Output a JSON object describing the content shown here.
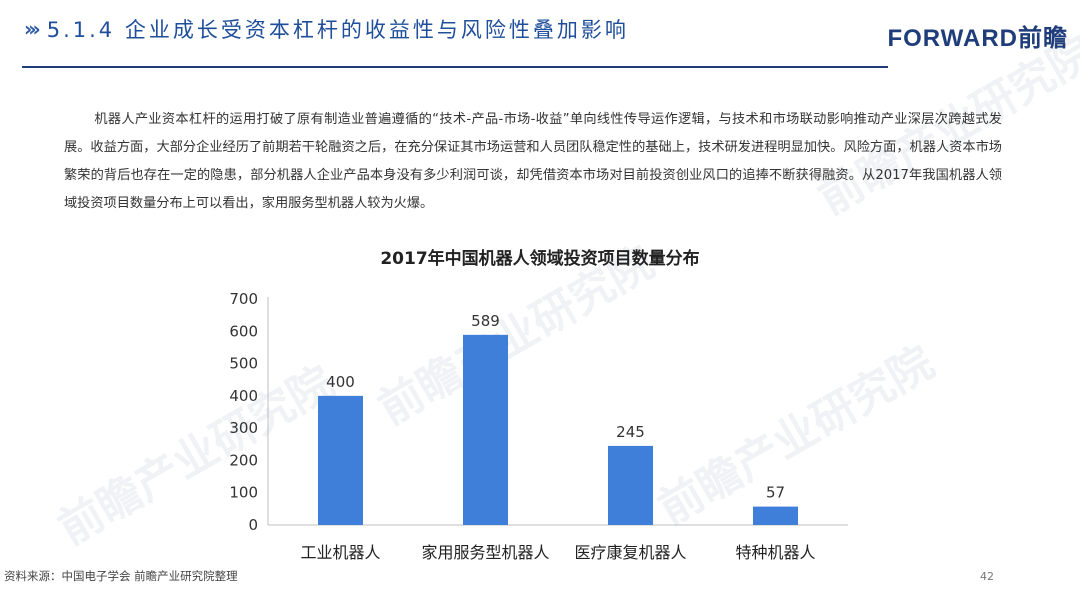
{
  "header": {
    "title": "5.1.4 企业成长受资本杠杆的收益性与风险性叠加影响",
    "logo": "FORWARD前瞻"
  },
  "watermark": "前瞻产业研究院",
  "body_text": "机器人产业资本杠杆的运用打破了原有制造业普遍遵循的“技术-产品-市场-收益”单向线性传导运作逻辑，与技术和市场联动影响推动产业深层次跨越式发展。收益方面，大部分企业经历了前期若干轮融资之后，在充分保证其市场运营和人员团队稳定性的基础上，技术研发进程明显加快。风险方面，机器人资本市场繁荣的背后也存在一定的隐患，部分机器人企业产品本身没有多少利润可谈，却凭借资本市场对目前投资创业风口的追捧不断获得融资。从2017年我国机器人领域投资项目数量分布上可以看出，家用服务型机器人较为火爆。",
  "chart_data": {
    "type": "bar",
    "title": "2017年中国机器人领域投资项目数量分布",
    "categories": [
      "工业机器人",
      "家用服务型机器人",
      "医疗康复机器人",
      "特种机器人"
    ],
    "values": [
      400,
      589,
      245,
      57
    ],
    "ylim": [
      0,
      700
    ],
    "yticks": [
      0,
      100,
      200,
      300,
      400,
      500,
      600,
      700
    ],
    "bar_color": "#3f7fd9",
    "grid": false,
    "legend": "none"
  },
  "footer": {
    "source": "资料来源：中国电子学会 前瞻产业研究院整理",
    "page": "42"
  }
}
